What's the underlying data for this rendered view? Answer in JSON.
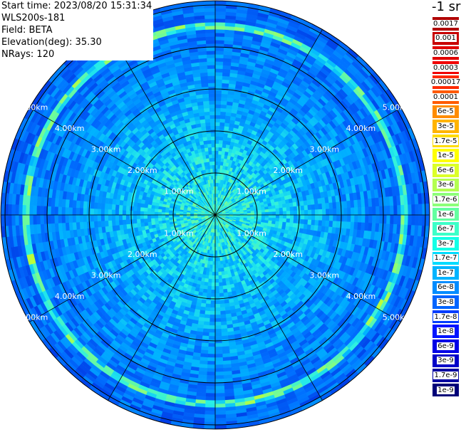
{
  "header": {
    "start_time": "Start time: 2023/08/20 15:31:34",
    "device": "WLS200s-181",
    "field": "Field: BETA",
    "elevation": "Elevation(deg): 35.30",
    "nrays": "NRays: 120"
  },
  "colorbar": {
    "unit": "-1 sr",
    "ticks": [
      "0.0017",
      "0.001",
      "0.0006",
      "0.0003",
      "0.00017",
      "0.0001",
      "6e-5",
      "3e-5",
      "1.7e-5",
      "1e-5",
      "6e-6",
      "3e-6",
      "1.7e-6",
      "1e-6",
      "6e-7",
      "3e-7",
      "1.7e-7",
      "1e-7",
      "6e-8",
      "3e-8",
      "1.7e-8",
      "1e-8",
      "6e-9",
      "3e-9",
      "1.7e-9",
      "1e-9"
    ],
    "colors": [
      "#b00000",
      "#c80000",
      "#e00000",
      "#f00000",
      "#ff2a00",
      "#ff5a00",
      "#ff8c00",
      "#ffb400",
      "#ffdc00",
      "#ffff00",
      "#dcff28",
      "#b4ff50",
      "#8cff78",
      "#64ffa0",
      "#3cffc8",
      "#14ffe6",
      "#00dcff",
      "#00b4ff",
      "#008cff",
      "#0064ff",
      "#003cff",
      "#0014ff",
      "#0000e6",
      "#0000c8",
      "#0000a0",
      "#000078"
    ]
  },
  "chart_data": {
    "type": "heatmap",
    "projection": "polar",
    "n_rays": 120,
    "range_rings_km": [
      1,
      2,
      3,
      4,
      5
    ],
    "max_range_km": 5.1,
    "spokes_deg": [
      0,
      30,
      60,
      90,
      120,
      150,
      180,
      210,
      240,
      270,
      300,
      330
    ],
    "ring_labels": [
      "1.00km",
      "2.00km",
      "3.00km",
      "4.00km",
      "5.00km"
    ],
    "bright_ring_km": 4.5,
    "background_level": "1e-8",
    "ring_level": "1e-6"
  }
}
